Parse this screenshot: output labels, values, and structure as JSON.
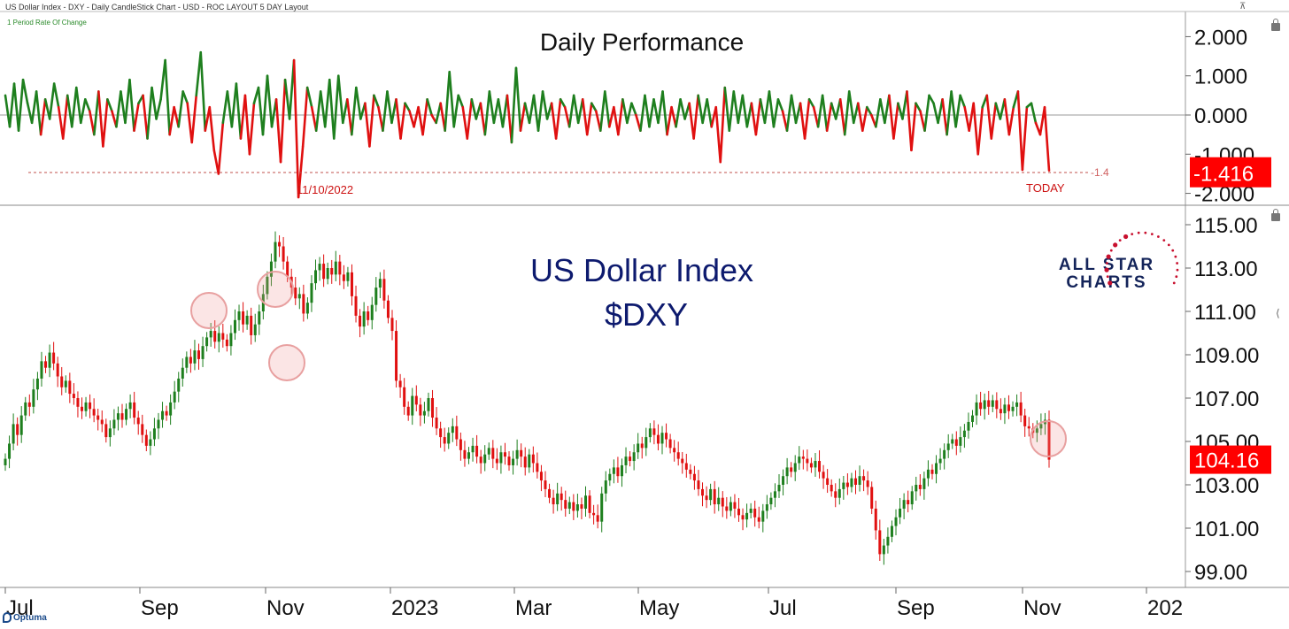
{
  "header": {
    "title": "US Dollar Index - DXY - Daily CandleStick Chart - USD - ROC LAYOUT 5 DAY Layout"
  },
  "footer": {
    "brand": "Optuma"
  },
  "colors": {
    "up": "#1e7f1e",
    "down": "#e01010",
    "title": "#0d1a6e",
    "label_bg": "#ff0000",
    "circle": "#e8a0a0"
  },
  "chart_data": [
    {
      "type": "line",
      "title": "Daily Performance",
      "subtitle": "1 Period Rate Of Change",
      "ylim": [
        -2.1,
        2.1
      ],
      "yticks": [
        2.0,
        1.0,
        0.0,
        -1.0,
        -2.0
      ],
      "ytick_labels": [
        "2.000",
        "1.000",
        "0.000",
        "-1.000",
        "-2.000"
      ],
      "last_value_label": "-1.416",
      "reference_line": {
        "value": -1.4,
        "label": "-1.4"
      },
      "annotations": [
        {
          "text": "11/10/2022",
          "value": -2.1
        },
        {
          "text": "TODAY",
          "value": -1.416
        }
      ],
      "series": [
        {
          "values": [
            0.5,
            -0.3,
            0.8,
            -0.4,
            0.9,
            0.3,
            -0.2,
            0.6,
            -0.5,
            0.4,
            -0.1,
            0.8,
            0.2,
            -0.6,
            0.5,
            -0.3,
            0.7,
            -0.2,
            0.4,
            0.1,
            -0.5,
            0.6,
            -0.8,
            0.4,
            0.1,
            -0.3,
            0.6,
            -0.2,
            0.9,
            -0.4,
            0.3,
            0.5,
            -0.6,
            0.7,
            -0.1,
            0.4,
            1.4,
            -0.5,
            0.2,
            -0.3,
            0.6,
            0.3,
            -0.7,
            0.5,
            1.6,
            -0.4,
            0.2,
            -0.9,
            -1.5,
            -0.2,
            0.6,
            -0.3,
            0.8,
            -0.6,
            0.5,
            -1.0,
            0.3,
            0.7,
            -0.5,
            1.0,
            -0.3,
            0.4,
            -1.2,
            0.9,
            -0.1,
            1.4,
            -2.1,
            -0.8,
            0.7,
            0.2,
            -0.4,
            0.6,
            -0.3,
            0.9,
            -0.6,
            1.0,
            -0.2,
            0.4,
            -0.5,
            0.7,
            -0.1,
            0.3,
            -0.8,
            0.5,
            0.2,
            -0.4,
            0.6,
            -0.2,
            0.4,
            -0.6,
            0.3,
            0.1,
            -0.3,
            0.2,
            -0.5,
            0.4,
            0.0,
            -0.2,
            0.3,
            -0.4,
            1.1,
            -0.3,
            0.5,
            0.2,
            -0.6,
            0.4,
            -0.1,
            0.3,
            -0.5,
            0.6,
            -0.2,
            0.4,
            -0.3,
            0.5,
            -0.7,
            1.2,
            -0.4,
            0.3,
            -0.2,
            0.5,
            -0.4,
            0.6,
            -0.1,
            0.3,
            -0.6,
            0.4,
            0.2,
            -0.3,
            0.5,
            -0.2,
            0.4,
            -0.5,
            0.3,
            0.1,
            -0.4,
            0.6,
            -0.3,
            0.2,
            -0.5,
            0.4,
            -0.2,
            0.3,
            0.0,
            -0.4,
            0.5,
            -0.3,
            0.4,
            -0.2,
            0.6,
            -0.5,
            0.2,
            -0.3,
            0.4,
            -0.1,
            0.3,
            -0.6,
            0.5,
            -0.2,
            0.4,
            -0.3,
            0.2,
            -1.2,
            0.7,
            -0.4,
            0.6,
            -0.2,
            0.5,
            -0.3,
            0.3,
            -0.5,
            0.4,
            -0.2,
            0.6,
            -0.3,
            0.4,
            0.1,
            -0.4,
            0.5,
            -0.2,
            0.3,
            -0.6,
            0.4,
            0.2,
            -0.3,
            0.5,
            -0.4,
            0.3,
            -0.1,
            0.4,
            -0.5,
            0.6,
            -0.2,
            0.3,
            -0.4,
            0.2,
            0.0,
            -0.3,
            0.4,
            -0.2,
            0.5,
            -0.6,
            0.3,
            -0.1,
            0.6,
            -0.9,
            0.3,
            0.1,
            -0.4,
            0.5,
            0.3,
            -0.2,
            0.4,
            -0.5,
            0.6,
            -0.3,
            0.5,
            0.2,
            -0.4,
            0.3,
            -1.0,
            0.2,
            0.5,
            -0.6,
            0.3,
            -0.1,
            0.4,
            -0.5,
            0.2,
            0.6,
            -1.4,
            0.2,
            0.3,
            -0.2,
            -0.5,
            0.2,
            -1.416
          ]
        }
      ]
    },
    {
      "type": "candlestick",
      "title": "US Dollar Index",
      "subtitle": "$DXY",
      "ylim": [
        98.5,
        115.5
      ],
      "yticks": [
        115,
        113,
        111,
        109,
        107,
        105,
        103,
        101,
        99
      ],
      "ytick_labels": [
        "115.00",
        "113.00",
        "111.00",
        "109.00",
        "107.00",
        "105.00",
        "103.00",
        "101.00",
        "99.00"
      ],
      "last_value_label": "104.16",
      "x_labels": [
        "Jul",
        "Sep",
        "Nov",
        "2023",
        "Mar",
        "May",
        "Jul",
        "Sep",
        "Nov",
        "202"
      ],
      "closes": [
        104.2,
        104.9,
        105.8,
        105.3,
        106.2,
        106.8,
        106.6,
        107.4,
        107.9,
        108.7,
        108.4,
        109.1,
        108.6,
        108.0,
        107.5,
        107.8,
        107.2,
        107.0,
        106.6,
        106.4,
        106.8,
        106.5,
        106.2,
        106.0,
        105.8,
        105.2,
        105.6,
        106.0,
        106.3,
        106.0,
        106.5,
        106.8,
        106.1,
        105.8,
        105.3,
        104.8,
        105.1,
        105.6,
        106.0,
        106.4,
        106.2,
        106.8,
        107.3,
        107.9,
        108.4,
        108.9,
        108.6,
        109.2,
        108.8,
        109.4,
        109.8,
        110.1,
        109.6,
        110.0,
        109.7,
        109.4,
        110.0,
        110.6,
        111.0,
        110.4,
        110.8,
        109.9,
        110.4,
        111.0,
        111.8,
        112.6,
        113.3,
        114.2,
        114.0,
        113.3,
        112.6,
        112.1,
        111.6,
        111.8,
        110.9,
        111.4,
        112.3,
        112.9,
        113.2,
        112.5,
        113.0,
        112.7,
        113.3,
        112.7,
        112.4,
        112.8,
        111.7,
        110.8,
        110.3,
        111.0,
        110.6,
        111.3,
        112.1,
        112.5,
        111.5,
        110.7,
        110.1,
        107.8,
        107.5,
        106.6,
        106.2,
        107.1,
        106.7,
        106.2,
        106.4,
        107.0,
        106.1,
        105.6,
        105.2,
        104.9,
        105.4,
        105.7,
        105.1,
        104.6,
        104.2,
        104.5,
        104.8,
        104.3,
        104.0,
        104.4,
        104.7,
        104.2,
        104.0,
        104.5,
        104.3,
        103.9,
        104.2,
        104.6,
        104.3,
        103.8,
        104.4,
        104.0,
        103.6,
        103.2,
        102.8,
        102.4,
        102.1,
        102.6,
        102.3,
        101.9,
        102.2,
        101.8,
        102.1,
        101.9,
        102.5,
        101.7,
        101.6,
        101.3,
        102.6,
        103.2,
        103.5,
        103.8,
        103.4,
        103.9,
        104.3,
        104.1,
        104.5,
        104.9,
        104.7,
        105.2,
        105.6,
        105.3,
        104.9,
        105.4,
        105.1,
        104.7,
        104.5,
        104.2,
        104.0,
        103.7,
        103.5,
        103.2,
        102.8,
        102.5,
        102.3,
        102.8,
        102.1,
        102.4,
        102.0,
        101.8,
        102.2,
        101.9,
        101.6,
        101.4,
        101.7,
        101.9,
        101.5,
        101.3,
        101.8,
        102.1,
        102.4,
        102.7,
        103.0,
        103.4,
        103.8,
        103.6,
        104.0,
        104.3,
        104.2,
        104.0,
        103.8,
        104.1,
        103.6,
        103.3,
        103.0,
        102.7,
        102.4,
        102.8,
        103.1,
        102.9,
        103.3,
        103.0,
        103.4,
        103.2,
        102.9,
        101.9,
        100.9,
        99.8,
        100.2,
        100.6,
        101.1,
        101.5,
        101.9,
        102.3,
        102.1,
        102.7,
        103.0,
        102.8,
        103.3,
        103.7,
        103.5,
        104.0,
        104.2,
        104.6,
        104.9,
        105.1,
        104.8,
        105.2,
        105.5,
        105.9,
        106.2,
        106.8,
        106.5,
        106.9,
        106.6,
        106.9,
        106.5,
        106.3,
        106.7,
        106.4,
        106.6,
        106.8,
        106.2,
        105.7,
        105.6,
        105.4,
        105.6,
        105.8,
        106.0,
        104.16
      ],
      "annotations": [
        {
          "type": "circle",
          "index": 81
        },
        {
          "type": "circle",
          "index": 96
        },
        {
          "type": "circle",
          "index": 101
        },
        {
          "type": "circle",
          "index": 259
        }
      ]
    }
  ]
}
